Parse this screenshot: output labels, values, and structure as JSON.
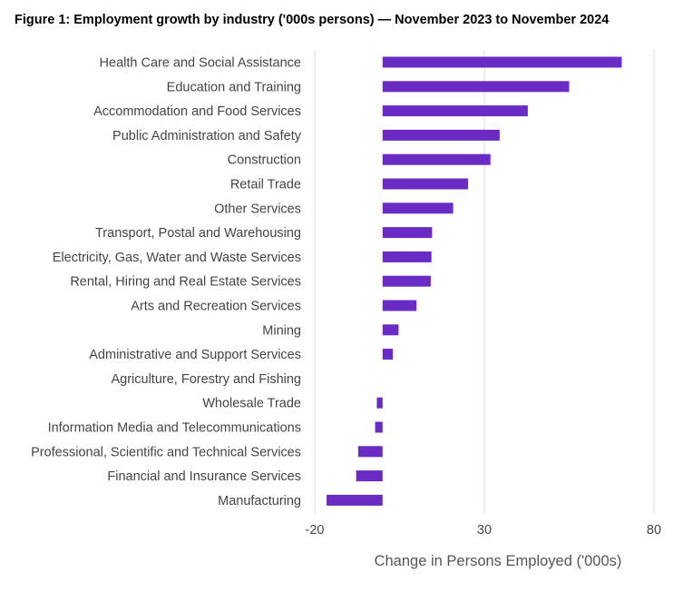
{
  "chart_data": {
    "type": "bar",
    "orientation": "horizontal",
    "title": "Figure 1: Employment growth by industry ('000s persons) — November 2023 to November 2024",
    "xlabel": "Change in Persons Employed ('000s)",
    "ylabel": "",
    "xlim": [
      -20,
      80
    ],
    "xticks": [
      -20,
      30,
      80
    ],
    "grid": true,
    "bar_color": "#6a2bc4",
    "gridline_color": "#dddddd",
    "categories": [
      "Health Care and Social Assistance",
      "Education and Training",
      "Accommodation and Food Services",
      "Public Administration and Safety",
      "Construction",
      "Retail Trade",
      "Other Services",
      "Transport, Postal and Warehousing",
      "Electricity, Gas, Water and Waste Services",
      "Rental, Hiring and Real Estate Services",
      "Arts and Recreation Services",
      "Mining",
      "Administrative and Support Services",
      "Agriculture, Forestry and Fishing",
      "Wholesale Trade",
      "Information Media and Telecommunications",
      "Professional, Scientific and Technical Services",
      "Financial and Insurance Services",
      "Manufacturing"
    ],
    "values": [
      70.5,
      55.0,
      42.8,
      34.5,
      31.8,
      25.2,
      20.8,
      14.6,
      14.4,
      14.2,
      10.0,
      4.7,
      3.0,
      0.0,
      -1.7,
      -2.2,
      -7.2,
      -7.8,
      -16.5
    ]
  }
}
